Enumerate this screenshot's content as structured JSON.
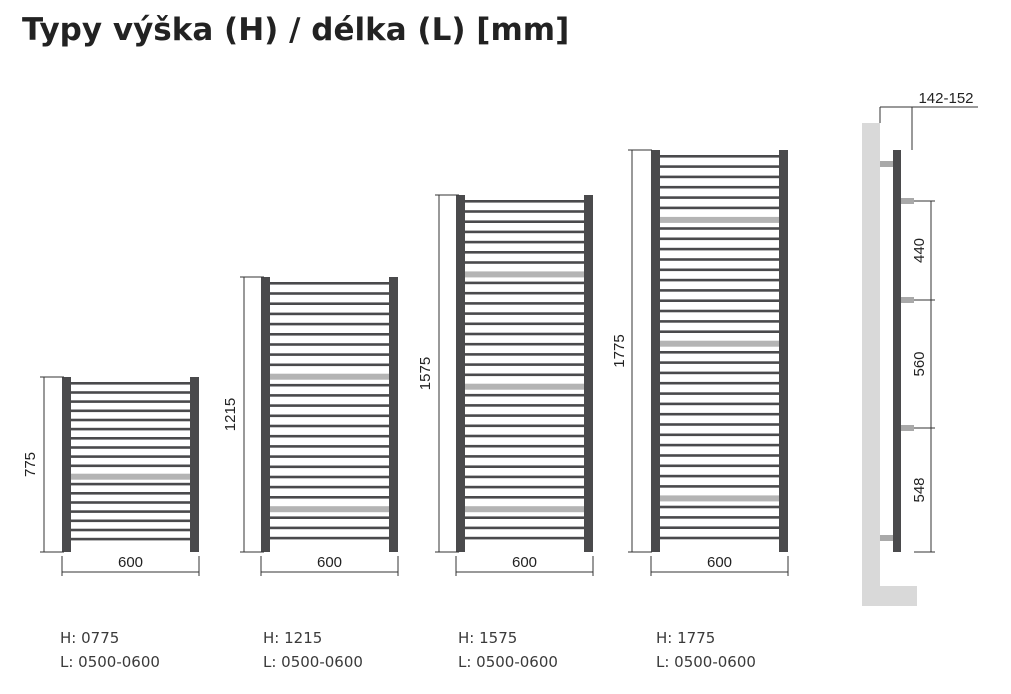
{
  "title": "Typy výška (H) / délka (L) [mm]",
  "colors": {
    "frame": "#4a4a4c",
    "rail_light": "#b4b4b4",
    "wall": "#d9d9d9",
    "dim_line": "#333333"
  },
  "radiators": [
    {
      "height_label": "775",
      "width_label": "600",
      "caption_h": "H: 0775",
      "caption_l": "L: 0500-0600",
      "bars": 18,
      "highlighted_bars": [
        10
      ]
    },
    {
      "height_label": "1215",
      "width_label": "600",
      "caption_h": "H: 1215",
      "caption_l": "L: 0500-0600",
      "bars": 26,
      "highlighted_bars": [
        9,
        22
      ]
    },
    {
      "height_label": "1575",
      "width_label": "600",
      "caption_h": "H: 1575",
      "caption_l": "L: 0500-0600",
      "bars": 34,
      "highlighted_bars": [
        7,
        18,
        30
      ]
    },
    {
      "height_label": "1775",
      "width_label": "600",
      "caption_h": "H: 1775",
      "caption_l": "L: 0500-0600",
      "bars": 38,
      "highlighted_bars": [
        6,
        18,
        33
      ]
    }
  ],
  "side_view": {
    "depth_label": "142-152",
    "spacings": [
      "440",
      "560",
      "548"
    ]
  }
}
